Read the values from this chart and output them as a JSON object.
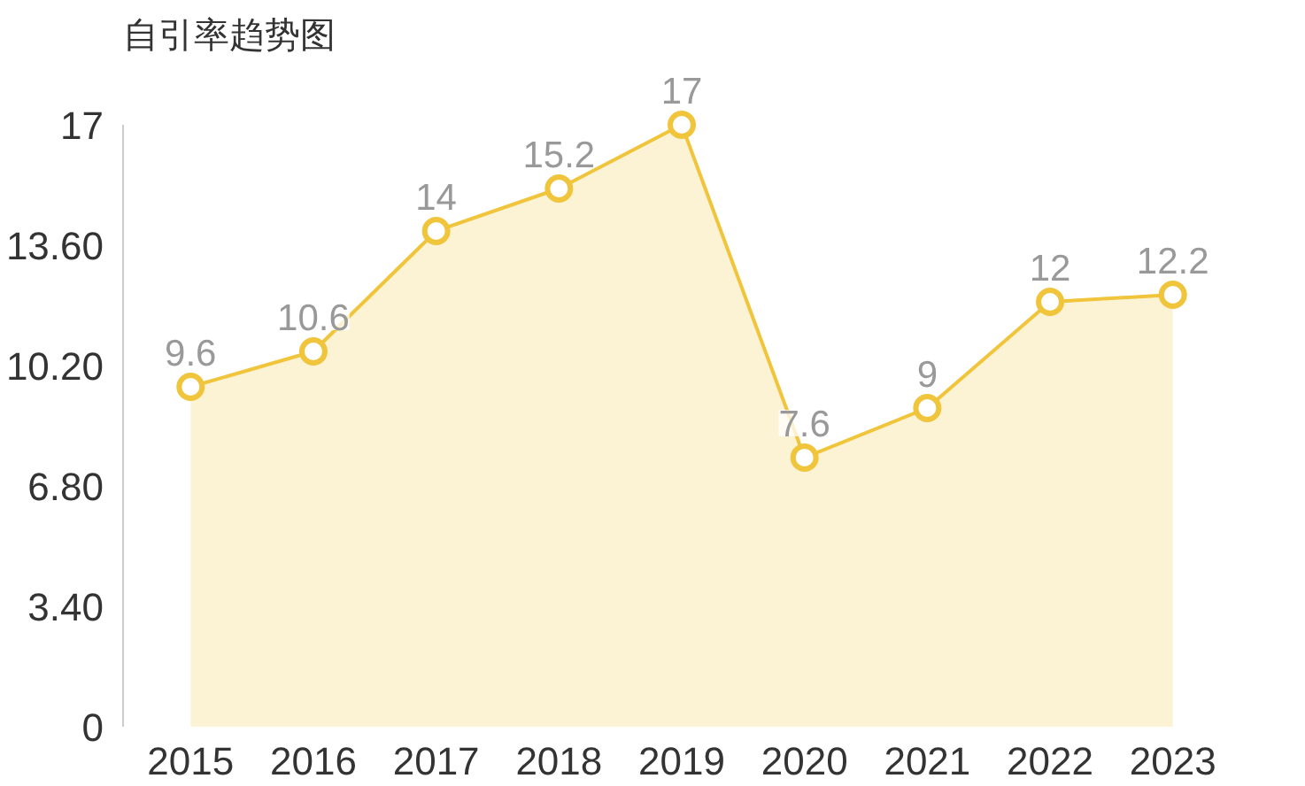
{
  "chart_data": {
    "type": "area",
    "title": "自引率趋势图",
    "categories": [
      "2015",
      "2016",
      "2017",
      "2018",
      "2019",
      "2020",
      "2021",
      "2022",
      "2023"
    ],
    "values": [
      9.6,
      10.6,
      14,
      15.2,
      17,
      7.6,
      9,
      12,
      12.2
    ],
    "color": "#f0c53c",
    "ylim": [
      0,
      17
    ],
    "yticks": [
      0,
      {
        "value": 3.4,
        "label": "3.40"
      },
      {
        "value": 6.8,
        "label": "6.80"
      },
      {
        "value": 10.2,
        "label": "10.20"
      },
      {
        "value": 13.6,
        "label": "13.60"
      },
      17
    ],
    "marker": "circle",
    "data_labels": true,
    "grid": false
  }
}
